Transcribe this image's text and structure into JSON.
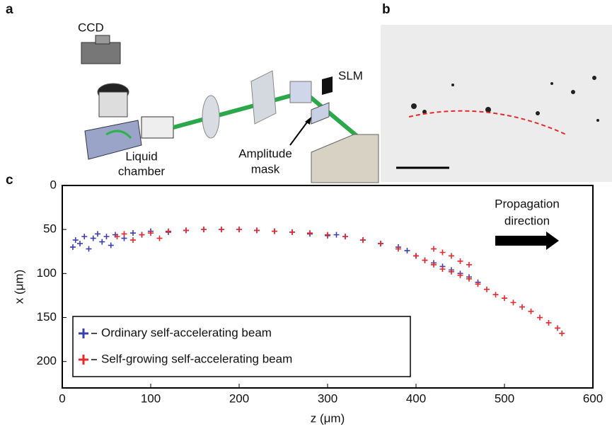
{
  "panels": {
    "a": "a",
    "b": "b",
    "c": "c"
  },
  "schematic": {
    "ccd": "CCD",
    "slm": "SLM",
    "chamber": [
      "Liquid",
      "chamber"
    ],
    "mask": [
      "Amplitude",
      "mask"
    ]
  },
  "chart_data": {
    "type": "scatter",
    "xlabel": "z (μm)",
    "ylabel": "x (μm)",
    "xlim": [
      0,
      600
    ],
    "ylim": [
      0,
      230
    ],
    "y_inverted": true,
    "xticks": [
      0,
      100,
      200,
      300,
      400,
      500,
      600
    ],
    "yticks": [
      0,
      50,
      100,
      150,
      200
    ],
    "annotation": [
      "Propagation",
      "direction"
    ],
    "legend": "lower left",
    "series": [
      {
        "name": "Ordinary self-accelerating beam",
        "color": "#3a3fb0",
        "x": [
          12,
          15,
          20,
          25,
          30,
          35,
          40,
          45,
          50,
          55,
          60,
          70,
          80,
          90,
          100,
          120,
          140,
          160,
          180,
          200,
          220,
          240,
          260,
          280,
          300,
          310,
          320,
          340,
          360,
          380,
          390,
          400,
          410,
          420,
          430,
          440,
          450,
          460,
          470
        ],
        "values": [
          70,
          62,
          66,
          58,
          72,
          60,
          55,
          64,
          58,
          68,
          56,
          60,
          54,
          56,
          52,
          53,
          51,
          50,
          50,
          50,
          51,
          52,
          53,
          55,
          57,
          56,
          58,
          62,
          66,
          70,
          74,
          80,
          85,
          88,
          92,
          96,
          100,
          104,
          110
        ]
      },
      {
        "name": "Self-growing self-accelerating beam",
        "color": "#e8282b",
        "x": [
          62,
          70,
          80,
          90,
          100,
          110,
          120,
          140,
          160,
          180,
          200,
          220,
          240,
          260,
          280,
          300,
          320,
          340,
          360,
          380,
          400,
          410,
          420,
          430,
          440,
          450,
          460,
          470,
          480,
          490,
          500,
          510,
          520,
          530,
          540,
          550,
          560,
          565,
          420,
          430,
          440,
          450,
          460
        ],
        "values": [
          58,
          55,
          62,
          56,
          54,
          60,
          52,
          51,
          50,
          50,
          50,
          51,
          52,
          53,
          54,
          56,
          58,
          62,
          66,
          72,
          80,
          85,
          90,
          95,
          98,
          102,
          106,
          112,
          118,
          124,
          128,
          133,
          138,
          143,
          150,
          156,
          162,
          168,
          72,
          76,
          80,
          86,
          90
        ]
      }
    ]
  }
}
